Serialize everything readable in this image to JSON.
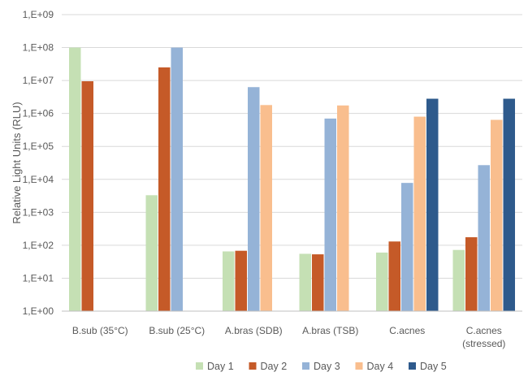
{
  "chart_data": {
    "type": "bar",
    "title": "",
    "xlabel": "",
    "ylabel": "Relative Light Units (RLU)",
    "yscale": "log",
    "ylim": [
      1,
      1000000000
    ],
    "y_ticks": [
      1,
      10,
      100,
      1000,
      10000,
      100000,
      1000000,
      10000000,
      100000000,
      1000000000
    ],
    "y_tick_labels": [
      "1,E+00",
      "1,E+01",
      "1,E+02",
      "1,E+03",
      "1,E+04",
      "1,E+05",
      "1,E+06",
      "1,E+07",
      "1,E+08",
      "1,E+09"
    ],
    "grid": true,
    "legend_position": "bottom",
    "categories": [
      [
        "B.sub (35°C)"
      ],
      [
        "B.sub (25°C)"
      ],
      [
        "A.bras (SDB)"
      ],
      [
        "A.bras (TSB)"
      ],
      [
        "C.acnes"
      ],
      [
        "C.acnes",
        "(stressed)"
      ]
    ],
    "series": [
      {
        "name": "Day 1",
        "color": "#c5e0b4",
        "values": [
          100000000,
          3300,
          65,
          55,
          60,
          72
        ]
      },
      {
        "name": "Day 2",
        "color": "#c55a28",
        "values": [
          9500000,
          25000000,
          68,
          53,
          130,
          175
        ]
      },
      {
        "name": "Day 3",
        "color": "#95b3d7",
        "values": [
          null,
          100000000,
          6300000,
          700000,
          7800,
          27000
        ]
      },
      {
        "name": "Day 4",
        "color": "#f9be8e",
        "values": [
          null,
          null,
          1800000,
          1750000,
          800000,
          640000
        ]
      },
      {
        "name": "Day 5",
        "color": "#2e5a8c",
        "values": [
          null,
          null,
          null,
          null,
          2800000,
          2800000
        ]
      }
    ]
  }
}
